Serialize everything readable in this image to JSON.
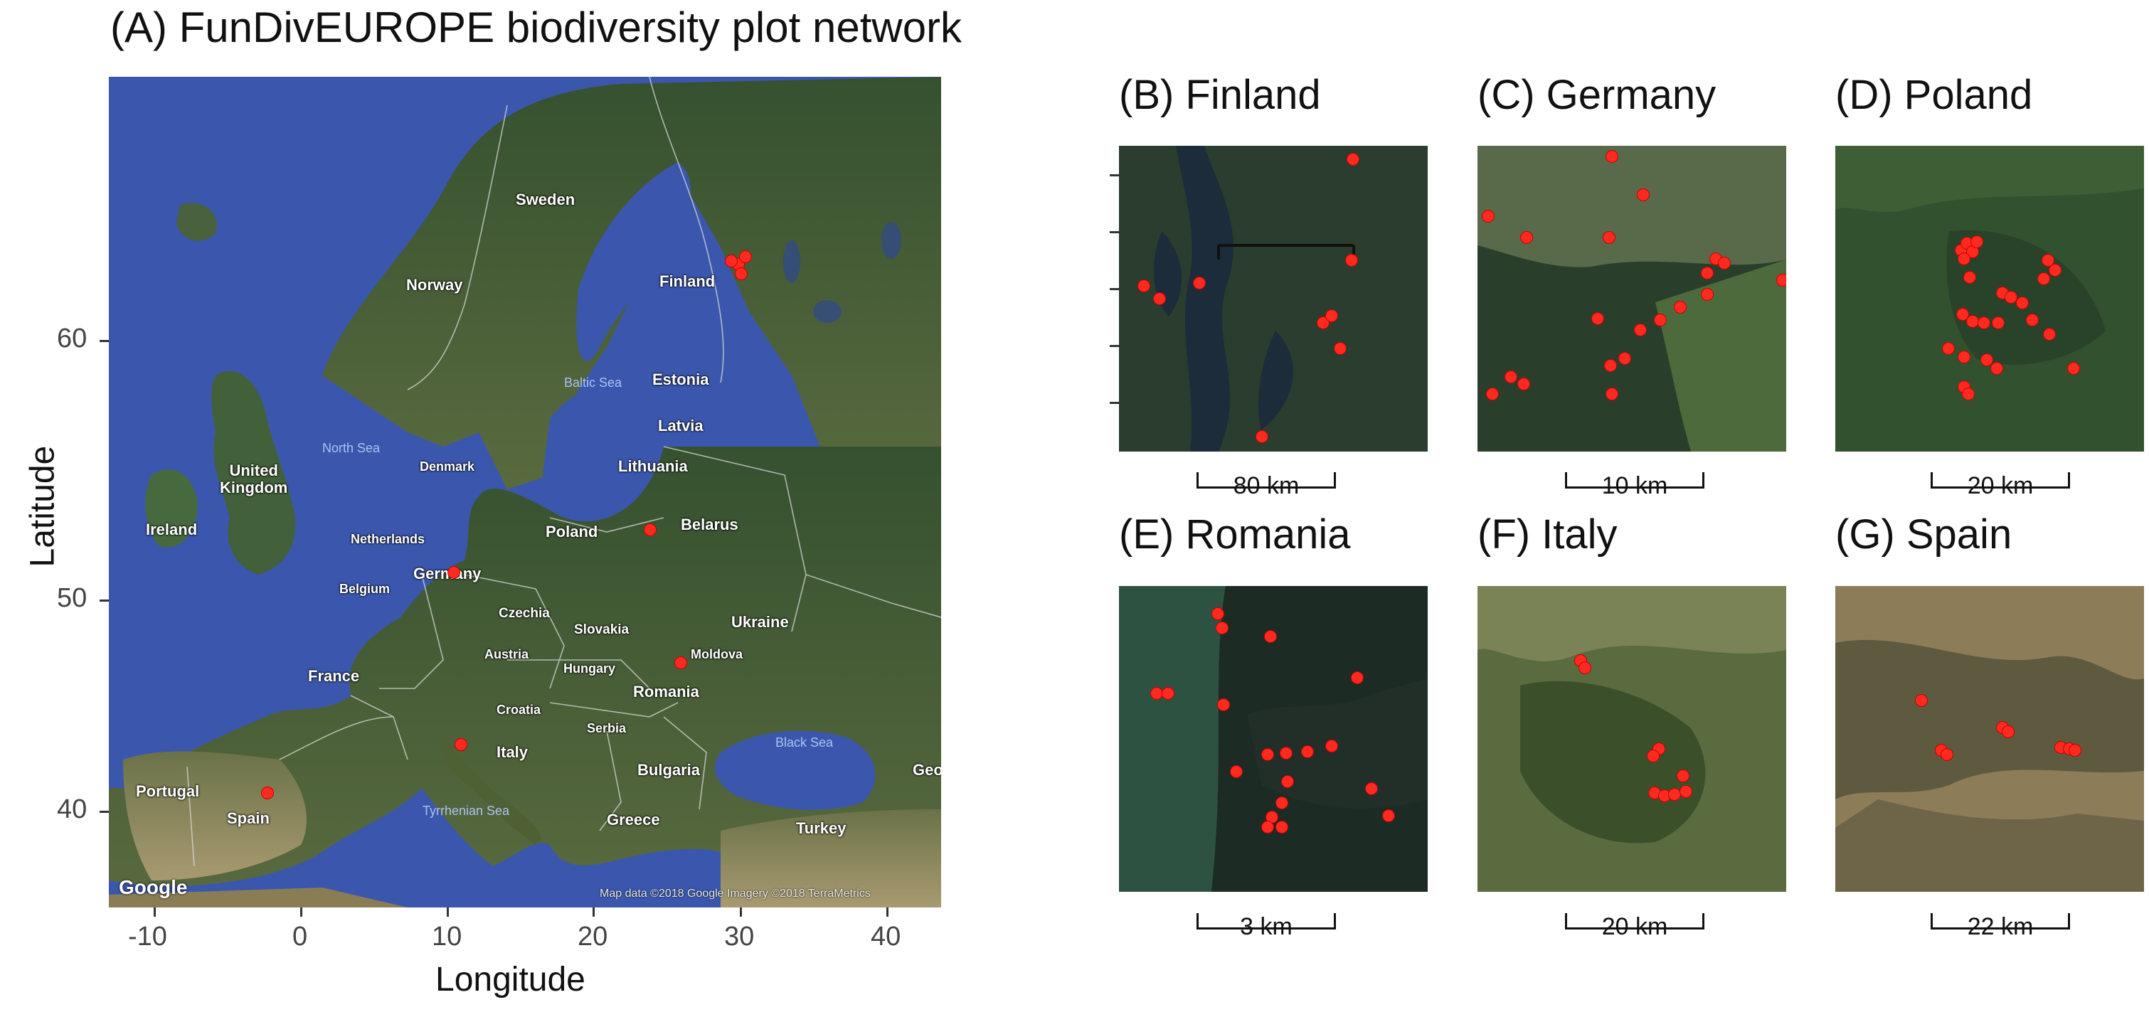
{
  "main_title": "(A) FunDivEUROPE biodiversity plot network",
  "axes": {
    "ylabel": "Latitude",
    "xlabel": "Longitude",
    "yticks": [
      "60",
      "50",
      "40"
    ],
    "xticks": [
      "-10",
      "0",
      "10",
      "20",
      "30",
      "40"
    ]
  },
  "map_labels": {
    "sweden": "Sweden",
    "norway": "Norway",
    "finland": "Finland",
    "estonia": "Estonia",
    "latvia": "Latvia",
    "lithuania": "Lithuania",
    "belarus": "Belarus",
    "denmark": "Denmark",
    "uk": "United\nKingdom",
    "ireland": "Ireland",
    "netherlands": "Netherlands",
    "germany": "Germany",
    "belgium": "Belgium",
    "poland": "Poland",
    "czechia": "Czechia",
    "slovakia": "Slovakia",
    "ukraine": "Ukraine",
    "moldova": "Moldova",
    "austria": "Austria",
    "hungary": "Hungary",
    "france": "France",
    "croatia": "Croatia",
    "romania": "Romania",
    "serbia": "Serbia",
    "italy": "Italy",
    "bulgaria": "Bulgaria",
    "portugal": "Portugal",
    "spain": "Spain",
    "greece": "Greece",
    "turkey": "Turkey",
    "georgia": "Geo",
    "north_sea": "North Sea",
    "baltic_sea": "Baltic Sea",
    "black_sea": "Black Sea",
    "tyrrhenian_sea": "Tyrrhenian Sea",
    "google": "Google",
    "credit": "Map data ©2018 Google   Imagery ©2018 TerraMetrics"
  },
  "panels": [
    {
      "title": "(B) Finland",
      "scale": "80 km"
    },
    {
      "title": "(C) Germany",
      "scale": "10 km"
    },
    {
      "title": "(D) Poland",
      "scale": "20 km"
    },
    {
      "title": "(E) Romania",
      "scale": "3 km"
    },
    {
      "title": "(F) Italy",
      "scale": "20 km"
    },
    {
      "title": "(G) Spain",
      "scale": "22 km"
    }
  ],
  "colors": {
    "sea": "#3c55a8",
    "land": "#3d5a3a",
    "plot_marker": "#ff2a1f"
  }
}
